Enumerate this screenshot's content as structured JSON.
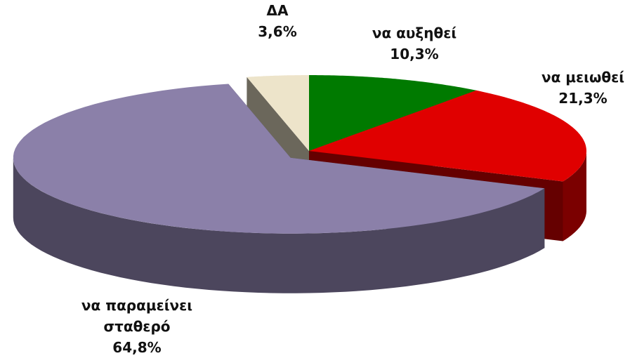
{
  "chart_data": {
    "type": "pie",
    "categories": [
      "να αυξηθεί",
      "να μειωθεί",
      "να παραμείνει σταθερό",
      "ΔΑ"
    ],
    "values": [
      10.3,
      21.3,
      64.8,
      3.6
    ],
    "value_labels": [
      "10,3%",
      "21,3%",
      "64,8%",
      "3,6%"
    ],
    "colors": [
      "#007a00",
      "#e00000",
      "#8b80a9",
      "#ede4ca"
    ],
    "exploded": "να παραμείνει σταθερό"
  }
}
